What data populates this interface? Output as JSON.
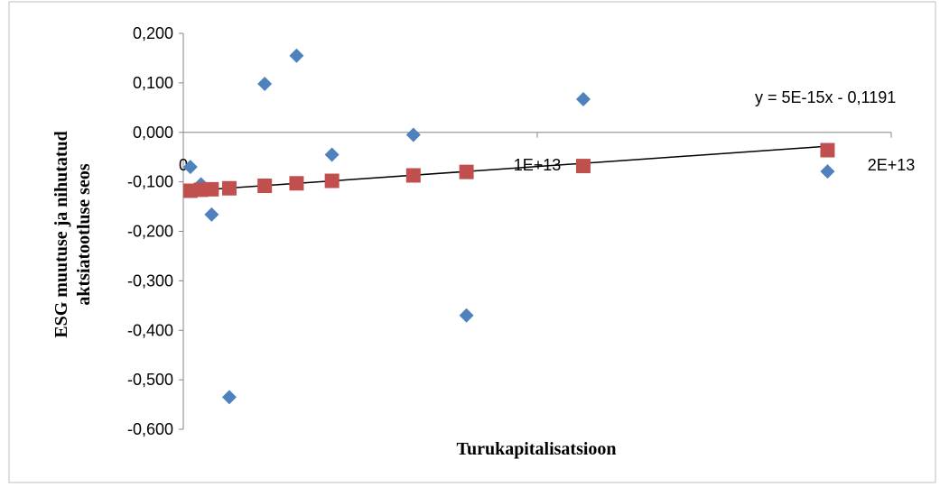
{
  "chart_data": {
    "type": "scatter",
    "xlabel": "Turukapitalisatsioon",
    "ylabel_line1": "ESG muutuse ja nihutatud",
    "ylabel_line2": "aktsiatootluse seos",
    "xlim": [
      0,
      20000000000000
    ],
    "ylim": [
      -0.6,
      0.2
    ],
    "x_ticks": [
      {
        "value": 0,
        "label": "0"
      },
      {
        "value": 10000000000000,
        "label": "1E+13"
      },
      {
        "value": 20000000000000,
        "label": "2E+13"
      }
    ],
    "y_ticks": [
      {
        "value": 0.2,
        "label": "0,200"
      },
      {
        "value": 0.1,
        "label": "0,100"
      },
      {
        "value": 0.0,
        "label": "0,000"
      },
      {
        "value": -0.1,
        "label": "-0,100"
      },
      {
        "value": -0.2,
        "label": "-0,200"
      },
      {
        "value": -0.3,
        "label": "-0,300"
      },
      {
        "value": -0.4,
        "label": "-0,400"
      },
      {
        "value": -0.5,
        "label": "-0,500"
      },
      {
        "value": -0.6,
        "label": "-0,600"
      }
    ],
    "series": [
      {
        "marker": "diamond",
        "color": "#4F81BD",
        "points": [
          {
            "x": 200000000000,
            "y": -0.07
          },
          {
            "x": 500000000000,
            "y": -0.105
          },
          {
            "x": 800000000000,
            "y": -0.166
          },
          {
            "x": 1300000000000,
            "y": -0.535
          },
          {
            "x": 2300000000000,
            "y": 0.098
          },
          {
            "x": 3200000000000,
            "y": 0.155
          },
          {
            "x": 4200000000000,
            "y": -0.045
          },
          {
            "x": 6500000000000,
            "y": -0.005
          },
          {
            "x": 8000000000000,
            "y": -0.37
          },
          {
            "x": 11300000000000,
            "y": 0.067
          },
          {
            "x": 18200000000000,
            "y": -0.079
          }
        ]
      },
      {
        "marker": "square",
        "color": "#C0504D",
        "points": [
          {
            "x": 200000000000,
            "y": -0.118
          },
          {
            "x": 500000000000,
            "y": -0.116
          },
          {
            "x": 800000000000,
            "y": -0.115
          },
          {
            "x": 1300000000000,
            "y": -0.113
          },
          {
            "x": 2300000000000,
            "y": -0.108
          },
          {
            "x": 3200000000000,
            "y": -0.103
          },
          {
            "x": 4200000000000,
            "y": -0.098
          },
          {
            "x": 6500000000000,
            "y": -0.087
          },
          {
            "x": 8000000000000,
            "y": -0.08
          },
          {
            "x": 11300000000000,
            "y": -0.068
          },
          {
            "x": 18200000000000,
            "y": -0.036
          }
        ]
      }
    ],
    "trendline": {
      "color": "#000000",
      "x_start": 200000000000,
      "x_end": 18200000000000,
      "slope": 5e-15,
      "intercept": -0.1191,
      "equation": "y = 5E-15x - 0,1191"
    },
    "grid": false,
    "legend": "none"
  }
}
